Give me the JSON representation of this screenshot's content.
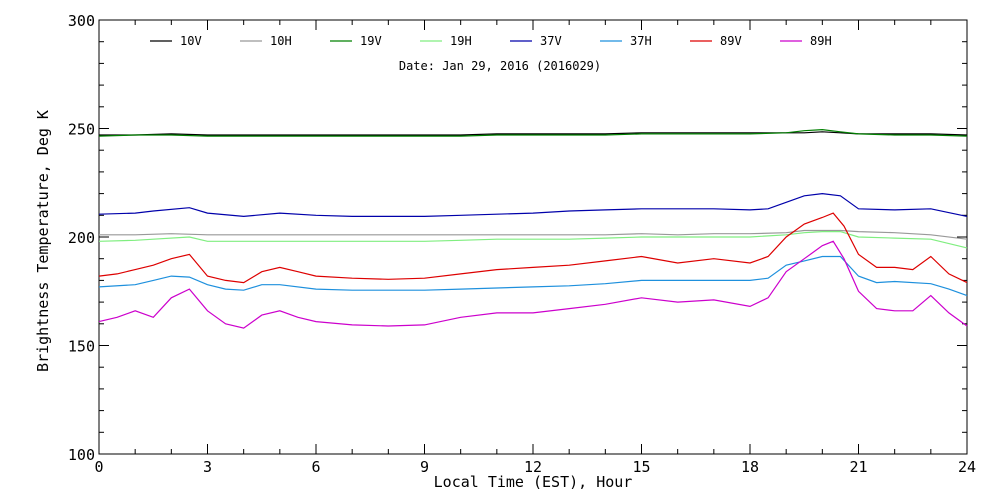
{
  "chart_data": {
    "type": "line",
    "subtitle": "Date: Jan 29, 2016 (2016029)",
    "xlabel": "Local Time (EST), Hour",
    "ylabel": "Brightness Temperature, Deg K",
    "xlim": [
      0,
      24
    ],
    "ylim": [
      100,
      300
    ],
    "xticks": [
      0,
      3,
      6,
      9,
      12,
      15,
      18,
      21,
      24
    ],
    "yticks": [
      100,
      150,
      200,
      250,
      300
    ],
    "xtick_labels": [
      "0",
      "3",
      "6",
      "9",
      "12",
      "15",
      "18",
      "21",
      "24"
    ],
    "ytick_labels": [
      "100",
      "150",
      "200",
      "250",
      "300"
    ],
    "grid": false,
    "legend_position": "top",
    "series": [
      {
        "name": "10V",
        "color": "#000000",
        "x": [
          0,
          1,
          2,
          3,
          4,
          5,
          6,
          7,
          8,
          9,
          10,
          11,
          12,
          13,
          14,
          15,
          16,
          17,
          18,
          19,
          19.5,
          20,
          20.5,
          21,
          22,
          23,
          24
        ],
        "y": [
          247,
          247,
          247.5,
          247,
          247,
          247,
          247,
          247,
          247,
          247,
          247,
          247.5,
          247.5,
          247.5,
          247.5,
          248,
          248,
          248,
          248,
          248,
          248,
          248.5,
          248,
          247.5,
          247.5,
          247.5,
          247
        ]
      },
      {
        "name": "10H",
        "color": "#999999",
        "x": [
          0,
          1,
          2,
          3,
          4,
          5,
          6,
          7,
          8,
          9,
          10,
          11,
          12,
          13,
          14,
          15,
          16,
          17,
          18,
          19,
          19.5,
          20,
          20.5,
          21,
          22,
          23,
          24
        ],
        "y": [
          201,
          201,
          201.5,
          201,
          201,
          201,
          201,
          201,
          201,
          201,
          201,
          201,
          201,
          201,
          201,
          201.5,
          201,
          201.5,
          201.5,
          202,
          203,
          203,
          203,
          202.5,
          202,
          201,
          199
        ]
      },
      {
        "name": "19V",
        "color": "#008000",
        "x": [
          0,
          1,
          2,
          3,
          4,
          5,
          6,
          7,
          8,
          9,
          10,
          11,
          12,
          13,
          14,
          15,
          16,
          17,
          18,
          19,
          19.5,
          20,
          20.5,
          21,
          22,
          23,
          24
        ],
        "y": [
          246.5,
          247,
          247,
          246.5,
          246.5,
          246.5,
          246.5,
          246.5,
          246.5,
          246.5,
          246.5,
          247,
          247,
          247,
          247,
          247.5,
          247.5,
          247.5,
          247.5,
          248,
          249,
          249.5,
          248.5,
          247.5,
          247,
          247,
          246.5
        ]
      },
      {
        "name": "19H",
        "color": "#80ee80",
        "x": [
          0,
          1,
          1.5,
          2.5,
          3,
          4,
          5,
          6,
          7,
          8,
          9,
          10,
          11,
          12,
          13,
          14,
          15,
          16,
          17,
          18,
          19,
          19.5,
          20,
          20.5,
          21,
          22,
          23,
          24
        ],
        "y": [
          198,
          198.5,
          199,
          200,
          198,
          198,
          198,
          198,
          198,
          198,
          198,
          198.5,
          199,
          199,
          199,
          199.5,
          200,
          200,
          200,
          200,
          201,
          202,
          202.5,
          202.5,
          200,
          199.5,
          199,
          195
        ]
      },
      {
        "name": "37V",
        "color": "#0000aa",
        "x": [
          0,
          1,
          1.5,
          2.5,
          3,
          4,
          5,
          6,
          7,
          8,
          9,
          10,
          11,
          12,
          13,
          14,
          15,
          16,
          17,
          18,
          18.5,
          19,
          19.5,
          20,
          20.5,
          21,
          22,
          23,
          24
        ],
        "y": [
          210.5,
          211,
          212,
          213.5,
          211,
          209.5,
          211,
          210,
          209.5,
          209.5,
          209.5,
          210,
          210.5,
          211,
          212,
          212.5,
          213,
          213,
          213,
          212.5,
          213,
          216,
          219,
          220,
          219,
          213,
          212.5,
          213,
          209.5
        ]
      },
      {
        "name": "37H",
        "color": "#1e90dd",
        "x": [
          0,
          1,
          1.5,
          2,
          2.5,
          3,
          3.5,
          4,
          4.5,
          5,
          6,
          7,
          8,
          9,
          10,
          11,
          12,
          13,
          14,
          15,
          16,
          17,
          18,
          18.5,
          19,
          19.5,
          20,
          20.5,
          21,
          21.5,
          22,
          23,
          23.5,
          24
        ],
        "y": [
          177,
          178,
          180,
          182,
          181.5,
          178,
          176,
          175.5,
          178,
          178,
          176,
          175.5,
          175.5,
          175.5,
          176,
          176.5,
          177,
          177.5,
          178.5,
          180,
          180,
          180,
          180,
          181,
          187,
          189,
          191,
          191,
          182,
          179,
          179.5,
          178.5,
          176,
          173
        ]
      },
      {
        "name": "89V",
        "color": "#dd0000",
        "x": [
          0,
          0.5,
          1,
          1.5,
          2,
          2.5,
          3,
          3.5,
          4,
          4.5,
          5,
          5.5,
          6,
          7,
          8,
          9,
          10,
          11,
          12,
          13,
          14,
          15,
          16,
          17,
          18,
          18.5,
          19,
          19.5,
          20,
          20.3,
          20.6,
          21,
          21.5,
          22,
          22.5,
          23,
          23.5,
          24
        ],
        "y": [
          182,
          183,
          185,
          187,
          190,
          192,
          182,
          180,
          179,
          184,
          186,
          184,
          182,
          181,
          180.5,
          181,
          183,
          185,
          186,
          187,
          189,
          191,
          188,
          190,
          188,
          191,
          200,
          206,
          209,
          211,
          205,
          192,
          186,
          186,
          185,
          191,
          183,
          179
        ]
      },
      {
        "name": "89H",
        "color": "#cc00cc",
        "x": [
          0,
          0.5,
          1,
          1.5,
          2,
          2.5,
          3,
          3.5,
          4,
          4.5,
          5,
          5.5,
          6,
          7,
          8,
          9,
          10,
          11,
          12,
          13,
          14,
          15,
          16,
          17,
          18,
          18.5,
          19,
          19.5,
          20,
          20.3,
          20.6,
          21,
          21.5,
          22,
          22.5,
          23,
          23.5,
          24
        ],
        "y": [
          161,
          163,
          166,
          163,
          172,
          176,
          166,
          160,
          158,
          164,
          166,
          163,
          161,
          159.5,
          159,
          159.5,
          163,
          165,
          165,
          167,
          169,
          172,
          170,
          171,
          168,
          172,
          184,
          190,
          196,
          198,
          190,
          175,
          167,
          166,
          166,
          173,
          165,
          159
        ]
      }
    ]
  }
}
